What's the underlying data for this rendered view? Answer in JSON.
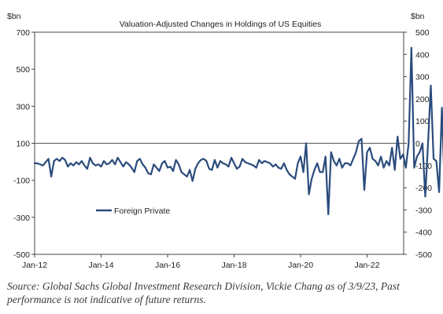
{
  "chart_data": {
    "type": "line",
    "title": "Valuation-Adjusted Changes in Holdings of US Equities",
    "left_unit": "$bn",
    "right_unit": "$bn",
    "left_axis": {
      "ylim": [
        -500,
        700
      ],
      "ticks": [
        "700",
        "500",
        "300",
        "100",
        "-100",
        "-300",
        "-500"
      ]
    },
    "right_axis": {
      "ylim": [
        -500,
        500
      ],
      "ticks": [
        "500",
        "400",
        "300",
        "200",
        "100",
        "0",
        "-100",
        "-200",
        "-300",
        "-400",
        "-500"
      ]
    },
    "x_ticks": [
      "Jan-12",
      "Jan-14",
      "Jan-16",
      "Jan-18",
      "Jan-20",
      "Jan-22"
    ],
    "x_start_year": 2012,
    "x_end_year": 2023.1,
    "legend": {
      "position": "lower-left"
    },
    "series": [
      {
        "name": "Foreign Private",
        "color": "#2a4b7c",
        "axis": "right",
        "values": [
          -90,
          -90,
          -95,
          -100,
          -85,
          -70,
          -150,
          -80,
          -70,
          -80,
          -65,
          -75,
          -105,
          -90,
          -100,
          -85,
          -95,
          -80,
          -100,
          -115,
          -65,
          -90,
          -100,
          -95,
          -105,
          -80,
          -95,
          -90,
          -75,
          -95,
          -65,
          -85,
          -105,
          -85,
          -95,
          -110,
          -130,
          -80,
          -70,
          -95,
          -110,
          -135,
          -140,
          -95,
          -110,
          -125,
          -90,
          -80,
          -110,
          -105,
          -125,
          -75,
          -95,
          -130,
          -140,
          -150,
          -120,
          -170,
          -115,
          -90,
          -75,
          -70,
          -80,
          -115,
          -120,
          -75,
          -110,
          -80,
          -90,
          -95,
          -105,
          -65,
          -90,
          -115,
          -105,
          -70,
          -85,
          -90,
          -95,
          -100,
          -110,
          -75,
          -90,
          -80,
          -85,
          -90,
          -105,
          -95,
          -110,
          -115,
          -90,
          -120,
          -140,
          -150,
          -160,
          -90,
          -60,
          -130,
          0,
          -230,
          -160,
          -120,
          -90,
          -130,
          -130,
          -60,
          -320,
          -40,
          -80,
          -100,
          -70,
          -110,
          -90,
          -90,
          -100,
          -70,
          -40,
          10,
          20,
          -210,
          -40,
          -20,
          -70,
          -80,
          -100,
          -60,
          -110,
          -80,
          -100,
          -20,
          -120,
          30,
          -70,
          -50,
          -110,
          0,
          430,
          -110,
          -60,
          -40,
          0,
          -240,
          0,
          260,
          -70,
          -80,
          -220,
          160,
          -210,
          40,
          -370,
          -30,
          -20,
          -320,
          0
        ]
      }
    ]
  },
  "source_note": "Source: Global Sachs Global Investment Research Division, Vickie Chang as of 3/9/23, Past performance is not indicative of future returns."
}
